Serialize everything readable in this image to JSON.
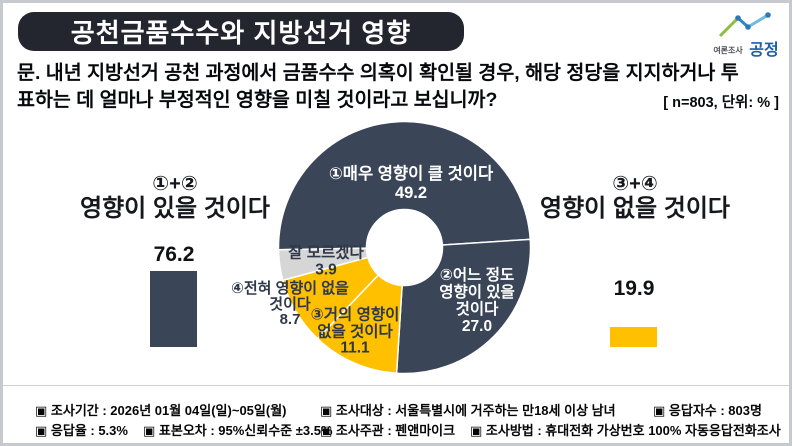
{
  "header": {
    "title": "공천금품수수와 지방선거 영향",
    "logo": {
      "small_text": "여론조사",
      "brand_text": "공정"
    }
  },
  "question": {
    "line1": "문. 내년 지방선거 공천 과정에서 금품수수 의혹이 확인될 경우, 해당 정당을 지지하거나 투",
    "line2": "표하는 데 얼마나 부정적인 영향을 미칠 것이라고 보십니까?",
    "note": "[ n=803, 단위: % ]"
  },
  "chart_data": {
    "type": "pie",
    "donut": true,
    "title": "공천금품수수와 지방선거 영향",
    "unit": "%",
    "n_label": "n=803",
    "start_angle_deg": -91,
    "slices": [
      {
        "label": "①매우 영향이 클 것이다",
        "display_label": "①매우 영향이 클 것이다",
        "value": 49.2,
        "color": "#3A4558",
        "text_color": "#FFFFFF"
      },
      {
        "label": "②어느 정도 영향이 있을 것이다",
        "display_label": "②어느 정도\n영향이 있을\n것이다",
        "value": 27.0,
        "color": "#3A4558",
        "text_color": "#FFFFFF"
      },
      {
        "label": "③거의 영향이 없을 것이다",
        "display_label": "③거의 영향이\n없을 것이다",
        "value": 11.1,
        "color": "#FFC000",
        "text_color": "#2F3848"
      },
      {
        "label": "④전혀 영향이 없을 것이다",
        "display_label": "④전혀 영향이 없을\n것이다",
        "value": 8.7,
        "color": "#FFC000",
        "text_color": "#2F3848"
      },
      {
        "label": "잘 모르겠다",
        "display_label": "잘 모르겠다",
        "value": 3.9,
        "color": "#D6D6D6",
        "text_color": "#2F3848"
      }
    ],
    "summaries": [
      {
        "formula": "①+②",
        "label": "영향이 있을 것이다",
        "value": 76.2,
        "color": "#3A4558"
      },
      {
        "formula": "③+④",
        "label": "영향이 없을 것이다",
        "value": 19.9,
        "color": "#FFC000"
      }
    ]
  },
  "footer": {
    "row1": [
      "▣ 조사기간 : 2026년 01월 04일(일)~05일(월)",
      "▣ 조사대상 : 서울특별시에 거주하는 만18세 이상 남녀",
      "▣ 응답자수 : 803명"
    ],
    "row2": [
      "▣ 응답율 : 5.3%",
      "▣ 표본오차 : 95%신뢰수준 ±3.5%",
      "▣ 조사주관 : 펜앤마이크",
      "▣ 조사방법 : 휴대전화 가상번호 100% 자동응답전화조사"
    ]
  }
}
